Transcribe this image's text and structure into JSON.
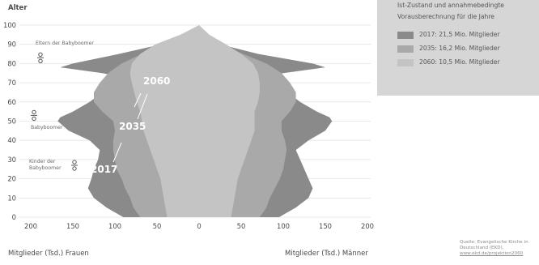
{
  "chart_data": {
    "type": "population-pyramid",
    "ylabel": "Alter",
    "xlabel_left": "Mitglieder (Tsd.) Frauen",
    "xlabel_right": "Mitglieder (Tsd.) Männer",
    "x_ticks_left": [
      "200",
      "150",
      "100",
      "50",
      "0"
    ],
    "x_ticks_right": [
      "50",
      "100",
      "150",
      "200"
    ],
    "y_ticks": [
      "0",
      "10",
      "20",
      "30",
      "40",
      "50",
      "60",
      "70",
      "80",
      "90",
      "100"
    ],
    "xlim": [
      -200,
      200
    ],
    "ylim": [
      0,
      100
    ],
    "series": [
      {
        "name": "2017: 21,5 Mio. Mitglieder",
        "year_label": "2017",
        "color": "#8a8a8a",
        "ages": [
          0,
          5,
          10,
          15,
          20,
          25,
          30,
          35,
          40,
          45,
          50,
          52,
          55,
          60,
          65,
          70,
          72,
          75,
          78,
          80,
          85,
          90,
          95,
          100
        ],
        "female": [
          90,
          110,
          125,
          132,
          128,
          125,
          120,
          118,
          130,
          155,
          168,
          165,
          150,
          130,
          115,
          110,
          80,
          115,
          165,
          150,
          95,
          45,
          10,
          0
        ],
        "male": [
          95,
          115,
          130,
          135,
          130,
          125,
          120,
          115,
          130,
          150,
          158,
          155,
          140,
          120,
          105,
          98,
          60,
          100,
          150,
          135,
          70,
          25,
          5,
          0
        ]
      },
      {
        "name": "2035: 16,2 Mio. Mitglieder",
        "year_label": "2035",
        "color": "#a9a9a9",
        "ages": [
          0,
          5,
          10,
          15,
          20,
          25,
          30,
          35,
          40,
          45,
          50,
          55,
          60,
          65,
          70,
          75,
          80,
          85,
          90,
          95,
          100
        ],
        "female": [
          70,
          78,
          82,
          88,
          92,
          98,
          100,
          102,
          102,
          100,
          102,
          115,
          125,
          125,
          118,
          108,
          92,
          68,
          38,
          10,
          0
        ],
        "male": [
          72,
          80,
          84,
          90,
          96,
          100,
          102,
          104,
          102,
          98,
          98,
          108,
          115,
          115,
          108,
          98,
          80,
          52,
          25,
          5,
          0
        ]
      },
      {
        "name": "2060: 10,5 Mio. Mitglieder",
        "year_label": "2060",
        "color": "#c4c4c4",
        "ages": [
          0,
          5,
          10,
          15,
          20,
          25,
          30,
          35,
          40,
          45,
          50,
          55,
          60,
          65,
          70,
          75,
          80,
          85,
          90,
          95,
          100
        ],
        "female": [
          38,
          40,
          42,
          44,
          46,
          50,
          54,
          58,
          62,
          66,
          68,
          70,
          74,
          77,
          80,
          82,
          80,
          70,
          52,
          22,
          0
        ],
        "male": [
          38,
          40,
          42,
          44,
          46,
          50,
          54,
          58,
          62,
          66,
          66,
          66,
          70,
          72,
          72,
          70,
          64,
          50,
          32,
          12,
          0
        ]
      }
    ],
    "annotations": [
      {
        "text": "Eltern der Babyboomer",
        "age": 83
      },
      {
        "text": "Babyboomer",
        "age": 50
      },
      {
        "text": "Kinder der Babyboomer",
        "age": 27
      }
    ],
    "legend": {
      "placement": "top-right",
      "heading_lines": [
        "Ist-Zustand und annahmebedingte",
        "Vorausberechnung für die Jahre"
      ]
    },
    "source_lines": [
      "Quelle: Evangelische Kirche in",
      "Deutschland (EKD),",
      "www.ekd.de/projektion2060"
    ]
  }
}
